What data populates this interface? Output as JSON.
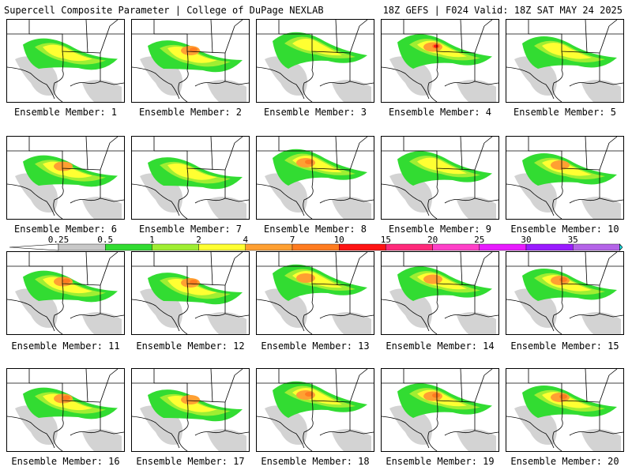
{
  "header": {
    "left": "Supercell Composite Parameter | College of DuPage NEXLAB",
    "right": "18Z GEFS | F024 Valid: 18Z SAT MAY 24 2025"
  },
  "members": [
    {
      "label": "Ensemble Member: 1",
      "intensity": 2
    },
    {
      "label": "Ensemble Member: 2",
      "intensity": 4
    },
    {
      "label": "Ensemble Member: 3",
      "intensity": 2
    },
    {
      "label": "Ensemble Member: 4",
      "intensity": 5
    },
    {
      "label": "Ensemble Member: 5",
      "intensity": 2
    },
    {
      "label": "Ensemble Member: 6",
      "intensity": 3
    },
    {
      "label": "Ensemble Member: 7",
      "intensity": 2
    },
    {
      "label": "Ensemble Member: 8",
      "intensity": 4
    },
    {
      "label": "Ensemble Member: 9",
      "intensity": 2
    },
    {
      "label": "Ensemble Member: 10",
      "intensity": 3
    },
    {
      "label": "Ensemble Member: 11",
      "intensity": 4
    },
    {
      "label": "Ensemble Member: 12",
      "intensity": 4
    },
    {
      "label": "Ensemble Member: 13",
      "intensity": 3
    },
    {
      "label": "Ensemble Member: 14",
      "intensity": 3
    },
    {
      "label": "Ensemble Member: 15",
      "intensity": 4
    },
    {
      "label": "Ensemble Member: 16",
      "intensity": 4
    },
    {
      "label": "Ensemble Member: 17",
      "intensity": 3
    },
    {
      "label": "Ensemble Member: 18",
      "intensity": 4
    },
    {
      "label": "Ensemble Member: 19",
      "intensity": 4
    },
    {
      "label": "Ensemble Member: 20",
      "intensity": 4
    }
  ],
  "colorbar": {
    "ticks": [
      "0.25",
      "0.5",
      "1",
      "2",
      "4",
      "7",
      "10",
      "15",
      "20",
      "25",
      "30",
      "35"
    ],
    "colors": [
      "#c8c8c8",
      "#32dc32",
      "#a0ee32",
      "#ffff32",
      "#ffa032",
      "#ff7c20",
      "#ff1414",
      "#ff2a7a",
      "#ff40c8",
      "#e81cff",
      "#9a1cff",
      "#b464e8",
      "#20e8f0"
    ]
  }
}
